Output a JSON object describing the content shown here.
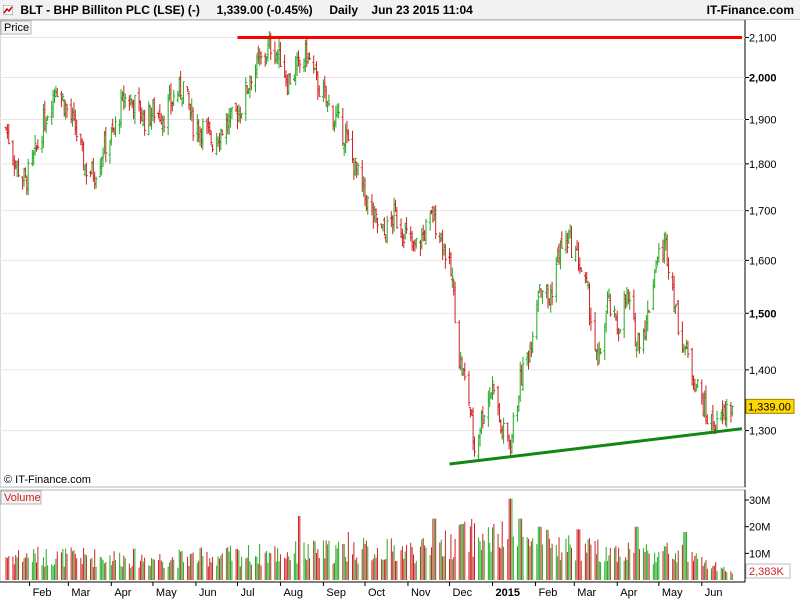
{
  "header": {
    "symbol": "BLT",
    "name": "BHP Billiton PLC (LSE) (-)",
    "quote": "1,339.00 (-0.45%)",
    "period": "Daily",
    "datetime": "Jun 23 2015 11:04",
    "brand": "IT-Finance.com"
  },
  "price_panel": {
    "label": "Price",
    "copyright": "© IT-Finance.com",
    "last_price_label": "1,339.00"
  },
  "volume_panel": {
    "label": "Volume",
    "last_volume_label": "2,383K"
  },
  "colors": {
    "up": "#22aa22",
    "down": "#cc2222",
    "resistance": "#ff0000",
    "support": "#118811",
    "last_price_bg": "#ffd700",
    "axis": "#000000",
    "grid": "#e6e6e6"
  },
  "chart_data": [
    {
      "type": "candlestick",
      "title": "BLT - BHP Billiton PLC (LSE) (-)",
      "ylabel": "Price",
      "y_scale": "log",
      "ylim": [
        1215,
        2140
      ],
      "y_ticks": [
        1300,
        1400,
        1500,
        1600,
        1700,
        1800,
        1900,
        2000,
        2100
      ],
      "y_tick_labels": [
        "1,300",
        "1,400",
        "1,500",
        "1,600",
        "1,700",
        "1,800",
        "1,900",
        "2,000",
        "2,100"
      ],
      "y_tick_bold": [
        1500,
        2000
      ],
      "x_range": [
        "2014-01-15",
        "2015-06-30"
      ],
      "x_ticks": [
        {
          "date": "2014-02-01",
          "label": "Feb"
        },
        {
          "date": "2014-03-01",
          "label": "Mar"
        },
        {
          "date": "2014-04-01",
          "label": "Apr"
        },
        {
          "date": "2014-05-01",
          "label": "May"
        },
        {
          "date": "2014-06-01",
          "label": "Jun"
        },
        {
          "date": "2014-07-01",
          "label": "Jul"
        },
        {
          "date": "2014-08-01",
          "label": "Aug"
        },
        {
          "date": "2014-09-01",
          "label": "Sep"
        },
        {
          "date": "2014-10-01",
          "label": "Oct"
        },
        {
          "date": "2014-11-01",
          "label": "Nov"
        },
        {
          "date": "2014-12-01",
          "label": "Dec"
        },
        {
          "date": "2015-01-01",
          "label": "2015",
          "bold": true
        },
        {
          "date": "2015-02-01",
          "label": "Feb"
        },
        {
          "date": "2015-03-01",
          "label": "Mar"
        },
        {
          "date": "2015-04-01",
          "label": "Apr"
        },
        {
          "date": "2015-05-01",
          "label": "May"
        },
        {
          "date": "2015-06-01",
          "label": "Jun"
        }
      ],
      "close_path": [
        [
          "2014-01-15",
          1880
        ],
        [
          "2014-01-22",
          1800
        ],
        [
          "2014-01-29",
          1760
        ],
        [
          "2014-02-05",
          1820
        ],
        [
          "2014-02-12",
          1900
        ],
        [
          "2014-02-20",
          1985
        ],
        [
          "2014-02-27",
          1930
        ],
        [
          "2014-03-06",
          1880
        ],
        [
          "2014-03-13",
          1790
        ],
        [
          "2014-03-20",
          1780
        ],
        [
          "2014-03-27",
          1840
        ],
        [
          "2014-04-03",
          1870
        ],
        [
          "2014-04-10",
          1950
        ],
        [
          "2014-04-17",
          1940
        ],
        [
          "2014-04-25",
          1900
        ],
        [
          "2014-05-02",
          1920
        ],
        [
          "2014-05-09",
          1910
        ],
        [
          "2014-05-16",
          1950
        ],
        [
          "2014-05-23",
          1980
        ],
        [
          "2014-05-30",
          1890
        ],
        [
          "2014-06-06",
          1880
        ],
        [
          "2014-06-13",
          1850
        ],
        [
          "2014-06-20",
          1880
        ],
        [
          "2014-06-27",
          1900
        ],
        [
          "2014-07-04",
          1930
        ],
        [
          "2014-07-11",
          2010
        ],
        [
          "2014-07-18",
          2040
        ],
        [
          "2014-07-25",
          2080
        ],
        [
          "2014-08-01",
          2050
        ],
        [
          "2014-08-06",
          1990
        ],
        [
          "2014-08-13",
          2020
        ],
        [
          "2014-08-20",
          2060
        ],
        [
          "2014-08-27",
          1990
        ],
        [
          "2014-09-03",
          1940
        ],
        [
          "2014-09-10",
          1900
        ],
        [
          "2014-09-17",
          1860
        ],
        [
          "2014-09-24",
          1790
        ],
        [
          "2014-10-01",
          1730
        ],
        [
          "2014-10-08",
          1680
        ],
        [
          "2014-10-15",
          1650
        ],
        [
          "2014-10-22",
          1690
        ],
        [
          "2014-10-29",
          1660
        ],
        [
          "2014-11-05",
          1620
        ],
        [
          "2014-11-12",
          1650
        ],
        [
          "2014-11-19",
          1690
        ],
        [
          "2014-11-26",
          1640
        ],
        [
          "2014-12-03",
          1560
        ],
        [
          "2014-12-08",
          1420
        ],
        [
          "2014-12-15",
          1350
        ],
        [
          "2014-12-19",
          1270
        ],
        [
          "2014-12-24",
          1320
        ],
        [
          "2015-01-02",
          1380
        ],
        [
          "2015-01-07",
          1300
        ],
        [
          "2015-01-14",
          1280
        ],
        [
          "2015-01-21",
          1380
        ],
        [
          "2015-01-28",
          1440
        ],
        [
          "2015-02-04",
          1560
        ],
        [
          "2015-02-11",
          1520
        ],
        [
          "2015-02-18",
          1620
        ],
        [
          "2015-02-25",
          1640
        ],
        [
          "2015-03-04",
          1600
        ],
        [
          "2015-03-11",
          1530
        ],
        [
          "2015-03-18",
          1400
        ],
        [
          "2015-03-25",
          1520
        ],
        [
          "2015-04-01",
          1470
        ],
        [
          "2015-04-08",
          1530
        ],
        [
          "2015-04-15",
          1450
        ],
        [
          "2015-04-22",
          1480
        ],
        [
          "2015-04-29",
          1600
        ],
        [
          "2015-05-06",
          1630
        ],
        [
          "2015-05-11",
          1550
        ],
        [
          "2015-05-15",
          1480
        ],
        [
          "2015-05-22",
          1420
        ],
        [
          "2015-05-29",
          1370
        ],
        [
          "2015-06-05",
          1320
        ],
        [
          "2015-06-12",
          1305
        ],
        [
          "2015-06-19",
          1335
        ],
        [
          "2015-06-23",
          1339
        ]
      ],
      "last_price": 1339,
      "trendlines": [
        {
          "name": "resistance",
          "color": "#ff0000",
          "from": [
            "2014-07-01",
            2100
          ],
          "to": [
            "2015-06-30",
            2100
          ]
        },
        {
          "name": "support",
          "color": "#118811",
          "from": [
            "2014-12-01",
            1248
          ],
          "to": [
            "2015-06-30",
            1303
          ]
        }
      ]
    },
    {
      "type": "bar",
      "title": "Volume",
      "ylim": [
        0,
        33000000
      ],
      "y_ticks": [
        10000000,
        20000000,
        30000000
      ],
      "y_tick_labels": [
        "10M",
        "20M",
        "30M"
      ],
      "volume_path": [
        [
          "2014-01-15",
          9000000
        ],
        [
          "2014-03-15",
          8500000
        ],
        [
          "2014-05-15",
          8000000
        ],
        [
          "2014-07-15",
          9500000
        ],
        [
          "2014-09-15",
          11000000
        ],
        [
          "2014-11-15",
          11000000
        ],
        [
          "2014-12-15",
          16000000
        ],
        [
          "2015-01-15",
          15000000
        ],
        [
          "2015-03-15",
          11000000
        ],
        [
          "2015-05-15",
          10000000
        ],
        [
          "2015-06-23",
          2383000
        ]
      ],
      "spikes": [
        [
          "2014-08-15",
          24000000
        ],
        [
          "2014-09-20",
          18000000
        ],
        [
          "2014-11-20",
          23000000
        ],
        [
          "2014-12-10",
          21000000
        ],
        [
          "2015-01-14",
          30500000
        ],
        [
          "2015-01-21",
          23000000
        ],
        [
          "2015-02-04",
          20000000
        ],
        [
          "2015-03-04",
          19000000
        ],
        [
          "2015-04-15",
          20000000
        ],
        [
          "2015-05-20",
          18000000
        ]
      ],
      "last_value": 2383000
    }
  ]
}
